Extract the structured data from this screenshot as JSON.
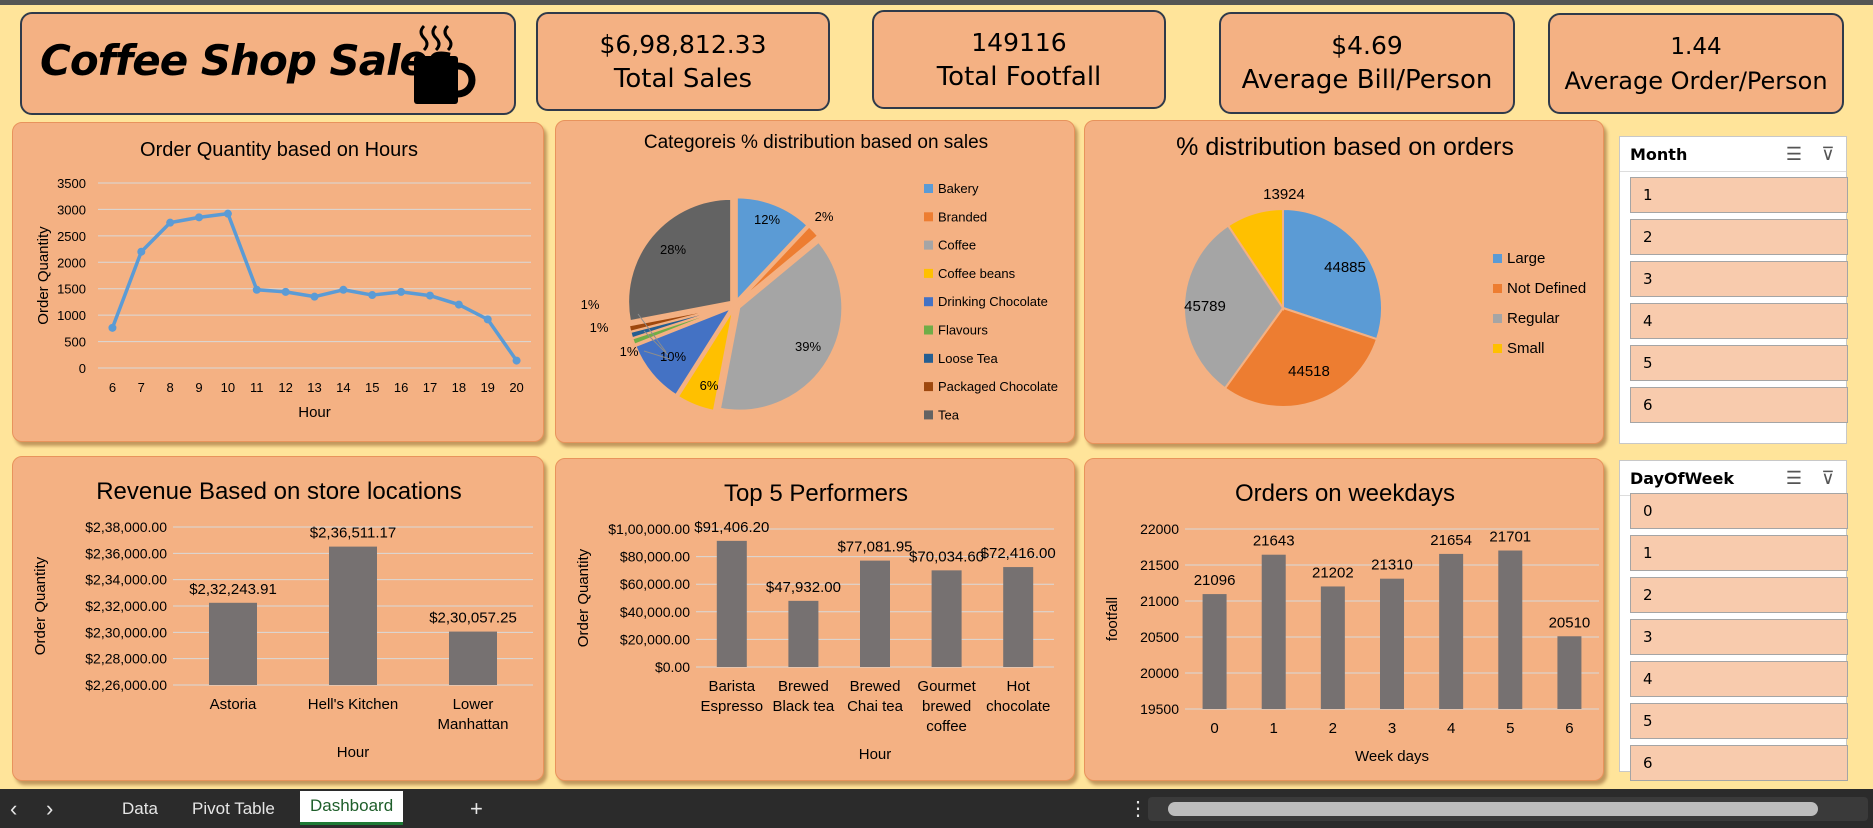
{
  "header": {
    "title": "Coffee Shop Sales",
    "logo_icon": "coffee-cup-icon"
  },
  "kpis": [
    {
      "value": "$6,98,812.33",
      "label": "Total Sales"
    },
    {
      "value": "149116",
      "label": "Total Footfall"
    },
    {
      "value": "$4.69",
      "label": "Average Bill/Person"
    },
    {
      "value": "1.44",
      "label": "Average Order/Person"
    }
  ],
  "colors": {
    "panel": "#f4b183",
    "background": "#ffe49a",
    "line": "#5b9bd5",
    "bar": "#767171"
  },
  "chart_data": [
    {
      "type": "line",
      "title": "Order Quantity based on Hours",
      "xlabel": "Hour",
      "ylabel": "Order Quantity",
      "x": [
        6,
        7,
        8,
        9,
        10,
        11,
        12,
        13,
        14,
        15,
        16,
        17,
        18,
        19,
        20
      ],
      "values": [
        760,
        2200,
        2750,
        2850,
        2920,
        1480,
        1440,
        1350,
        1480,
        1380,
        1440,
        1370,
        1200,
        920,
        140
      ],
      "ylim": [
        0,
        3500
      ],
      "yticks": [
        "0",
        "500",
        "1000",
        "1500",
        "2000",
        "2500",
        "3000",
        "3500"
      ]
    },
    {
      "type": "pie",
      "title": "Categoreis % distribution based on sales",
      "categories": [
        "Bakery",
        "Branded",
        "Coffee",
        "Coffee beans",
        "Drinking Chocolate",
        "Flavours",
        "Loose Tea",
        "Packaged Chocolate",
        "Tea"
      ],
      "values": [
        12,
        2,
        39,
        6,
        10,
        1,
        1,
        1,
        28
      ],
      "labels": [
        "12%",
        "2%",
        "39%",
        "6%",
        "10%",
        "1%",
        "1%",
        "1%",
        "28%"
      ],
      "colors": [
        "#5b9bd5",
        "#ed7d31",
        "#a5a5a5",
        "#ffc000",
        "#4472c4",
        "#70ad47",
        "#255e91",
        "#9e480e",
        "#636363"
      ],
      "legend": "right"
    },
    {
      "type": "pie",
      "title": "% distribution based on orders",
      "categories": [
        "Large",
        "Not Defined",
        "Regular",
        "Small"
      ],
      "values": [
        44885,
        44518,
        45789,
        13924
      ],
      "labels": [
        "44885",
        "44518",
        "45789",
        "13924"
      ],
      "colors": [
        "#5b9bd5",
        "#ed7d31",
        "#a5a5a5",
        "#ffc000"
      ],
      "legend": "right"
    },
    {
      "type": "bar",
      "title": "Revenue Based on store locations",
      "xlabel": "Hour",
      "ylabel": "Order Quantity",
      "categories": [
        "Astoria",
        "Hell's Kitchen",
        "Lower Manhattan"
      ],
      "values": [
        232243.91,
        236511.17,
        230057.25
      ],
      "labels": [
        "$2,32,243.91",
        "$2,36,511.17",
        "$2,30,057.25"
      ],
      "ylim": [
        226000,
        238000
      ],
      "yticks": [
        "$2,26,000.00",
        "$2,28,000.00",
        "$2,30,000.00",
        "$2,32,000.00",
        "$2,34,000.00",
        "$2,36,000.00",
        "$2,38,000.00"
      ]
    },
    {
      "type": "bar",
      "title": "Top 5 Performers",
      "xlabel": "Hour",
      "ylabel": "Order Quantity",
      "categories": [
        "Barista Espresso",
        "Brewed Black tea",
        "Brewed Chai tea",
        "Gourmet brewed coffee",
        "Hot chocolate"
      ],
      "values": [
        91406.2,
        47932.0,
        77081.95,
        70034.6,
        72416.0
      ],
      "labels": [
        "$91,406.20",
        "$47,932.00",
        "$77,081.95",
        "$70,034.60",
        "$72,416.00"
      ],
      "ylim": [
        0,
        100000
      ],
      "yticks": [
        "$0.00",
        "$20,000.00",
        "$40,000.00",
        "$60,000.00",
        "$80,000.00",
        "$1,00,000.00"
      ]
    },
    {
      "type": "bar",
      "title": "Orders on weekdays",
      "xlabel": "Week days",
      "ylabel": "footfall",
      "categories": [
        "0",
        "1",
        "2",
        "3",
        "4",
        "5",
        "6"
      ],
      "values": [
        21096,
        21643,
        21202,
        21310,
        21654,
        21701,
        20510
      ],
      "labels": [
        "21096",
        "21643",
        "21202",
        "21310",
        "21654",
        "21701",
        "20510"
      ],
      "ylim": [
        19500,
        22000
      ],
      "yticks": [
        "19500",
        "20000",
        "20500",
        "21000",
        "21500",
        "22000"
      ]
    }
  ],
  "slicers": [
    {
      "title": "Month",
      "items": [
        "1",
        "2",
        "3",
        "4",
        "5",
        "6"
      ]
    },
    {
      "title": "DayOfWeek",
      "items": [
        "0",
        "1",
        "2",
        "3",
        "4",
        "5",
        "6"
      ]
    }
  ],
  "tabs": {
    "prev": "‹",
    "next": "›",
    "items": [
      "Data",
      "Pivot Table",
      "Dashboard"
    ],
    "active": "Dashboard",
    "add": "+",
    "more": "⋮"
  }
}
